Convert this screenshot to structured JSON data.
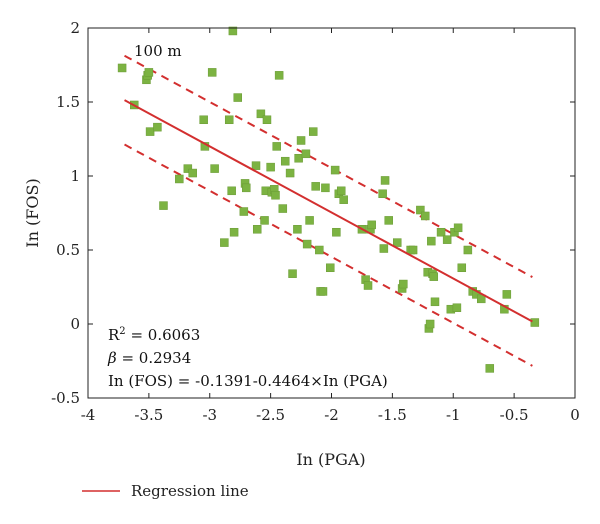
{
  "chart_data": {
    "type": "scatter",
    "xlabel": "In (PGA)",
    "ylabel": "In (FOS)",
    "xlim": [
      -4,
      0
    ],
    "ylim": [
      -0.5,
      2
    ],
    "xticks": [
      -4,
      -3.5,
      -3,
      -2.5,
      -2,
      -1.5,
      -1,
      -0.5,
      0
    ],
    "xtick_labels": [
      "-4",
      "-3.5",
      "-3",
      "-2.5",
      "-2",
      "-1.5",
      "-1",
      "-0.5",
      "0"
    ],
    "yticks": [
      -0.5,
      0,
      0.5,
      1,
      1.5,
      2
    ],
    "ytick_labels": [
      "-0.5",
      "0",
      "0.5",
      "1",
      "1.5",
      "2"
    ],
    "grid": false,
    "marker_color": "#7cb342",
    "line_color": "#d32f2f",
    "regression": {
      "intercept": -0.1391,
      "slope": -0.4464,
      "x_range": [
        -3.7,
        -0.35
      ],
      "band_offset": 0.3
    },
    "annotations": {
      "distance_label": "100 m",
      "r2_label": "R",
      "r2_sup": "2",
      "r2_value": " = 0.6063",
      "beta_symbol": "β",
      "beta_value": " = 0.2934",
      "equation": "In (FOS) = -0.1391-0.4464×In (PGA)"
    },
    "legend": {
      "position": "bottom-left",
      "entries": [
        {
          "label": "Regression line",
          "style": "solid-red-line"
        }
      ]
    },
    "points": [
      [
        -3.72,
        1.73
      ],
      [
        -3.62,
        1.48
      ],
      [
        -3.52,
        1.65
      ],
      [
        -3.51,
        1.68
      ],
      [
        -3.5,
        1.7
      ],
      [
        -3.49,
        1.3
      ],
      [
        -3.43,
        1.33
      ],
      [
        -3.38,
        0.8
      ],
      [
        -3.25,
        0.98
      ],
      [
        -3.18,
        1.05
      ],
      [
        -3.14,
        1.02
      ],
      [
        -3.05,
        1.38
      ],
      [
        -3.04,
        1.2
      ],
      [
        -2.98,
        1.7
      ],
      [
        -2.96,
        1.05
      ],
      [
        -2.88,
        0.55
      ],
      [
        -2.84,
        1.38
      ],
      [
        -2.82,
        0.9
      ],
      [
        -2.81,
        1.98
      ],
      [
        -2.8,
        0.62
      ],
      [
        -2.77,
        1.53
      ],
      [
        -2.72,
        0.76
      ],
      [
        -2.71,
        0.95
      ],
      [
        -2.7,
        0.92
      ],
      [
        -2.62,
        1.07
      ],
      [
        -2.61,
        0.64
      ],
      [
        -2.58,
        1.42
      ],
      [
        -2.55,
        0.7
      ],
      [
        -2.54,
        0.9
      ],
      [
        -2.53,
        1.38
      ],
      [
        -2.5,
        1.06
      ],
      [
        -2.49,
        0.89
      ],
      [
        -2.47,
        0.91
      ],
      [
        -2.46,
        0.87
      ],
      [
        -2.45,
        1.2
      ],
      [
        -2.43,
        1.68
      ],
      [
        -2.4,
        0.78
      ],
      [
        -2.38,
        1.1
      ],
      [
        -2.34,
        1.02
      ],
      [
        -2.32,
        0.34
      ],
      [
        -2.28,
        0.64
      ],
      [
        -2.27,
        1.12
      ],
      [
        -2.25,
        1.24
      ],
      [
        -2.21,
        1.15
      ],
      [
        -2.2,
        0.54
      ],
      [
        -2.18,
        0.7
      ],
      [
        -2.15,
        1.3
      ],
      [
        -2.13,
        0.93
      ],
      [
        -2.1,
        0.5
      ],
      [
        -2.09,
        0.22
      ],
      [
        -2.07,
        0.22
      ],
      [
        -2.05,
        0.92
      ],
      [
        -2.01,
        0.38
      ],
      [
        -1.97,
        1.04
      ],
      [
        -1.96,
        0.62
      ],
      [
        -1.94,
        0.88
      ],
      [
        -1.92,
        0.9
      ],
      [
        -1.9,
        0.84
      ],
      [
        -1.75,
        0.64
      ],
      [
        -1.72,
        0.3
      ],
      [
        -1.7,
        0.26
      ],
      [
        -1.68,
        0.64
      ],
      [
        -1.67,
        0.67
      ],
      [
        -1.58,
        0.88
      ],
      [
        -1.57,
        0.51
      ],
      [
        -1.56,
        0.97
      ],
      [
        -1.53,
        0.7
      ],
      [
        -1.46,
        0.55
      ],
      [
        -1.42,
        0.24
      ],
      [
        -1.41,
        0.27
      ],
      [
        -1.35,
        0.5
      ],
      [
        -1.33,
        0.5
      ],
      [
        -1.27,
        0.77
      ],
      [
        -1.23,
        0.73
      ],
      [
        -1.21,
        0.35
      ],
      [
        -1.2,
        -0.03
      ],
      [
        -1.19,
        0.0
      ],
      [
        -1.18,
        0.56
      ],
      [
        -1.17,
        0.34
      ],
      [
        -1.16,
        0.32
      ],
      [
        -1.15,
        0.15
      ],
      [
        -1.1,
        0.62
      ],
      [
        -1.05,
        0.57
      ],
      [
        -1.02,
        0.1
      ],
      [
        -0.99,
        0.62
      ],
      [
        -0.97,
        0.11
      ],
      [
        -0.96,
        0.65
      ],
      [
        -0.93,
        0.38
      ],
      [
        -0.88,
        0.5
      ],
      [
        -0.84,
        0.22
      ],
      [
        -0.81,
        0.2
      ],
      [
        -0.77,
        0.17
      ],
      [
        -0.7,
        -0.3
      ],
      [
        -0.58,
        0.1
      ],
      [
        -0.56,
        0.2
      ],
      [
        -0.33,
        0.01
      ]
    ]
  }
}
